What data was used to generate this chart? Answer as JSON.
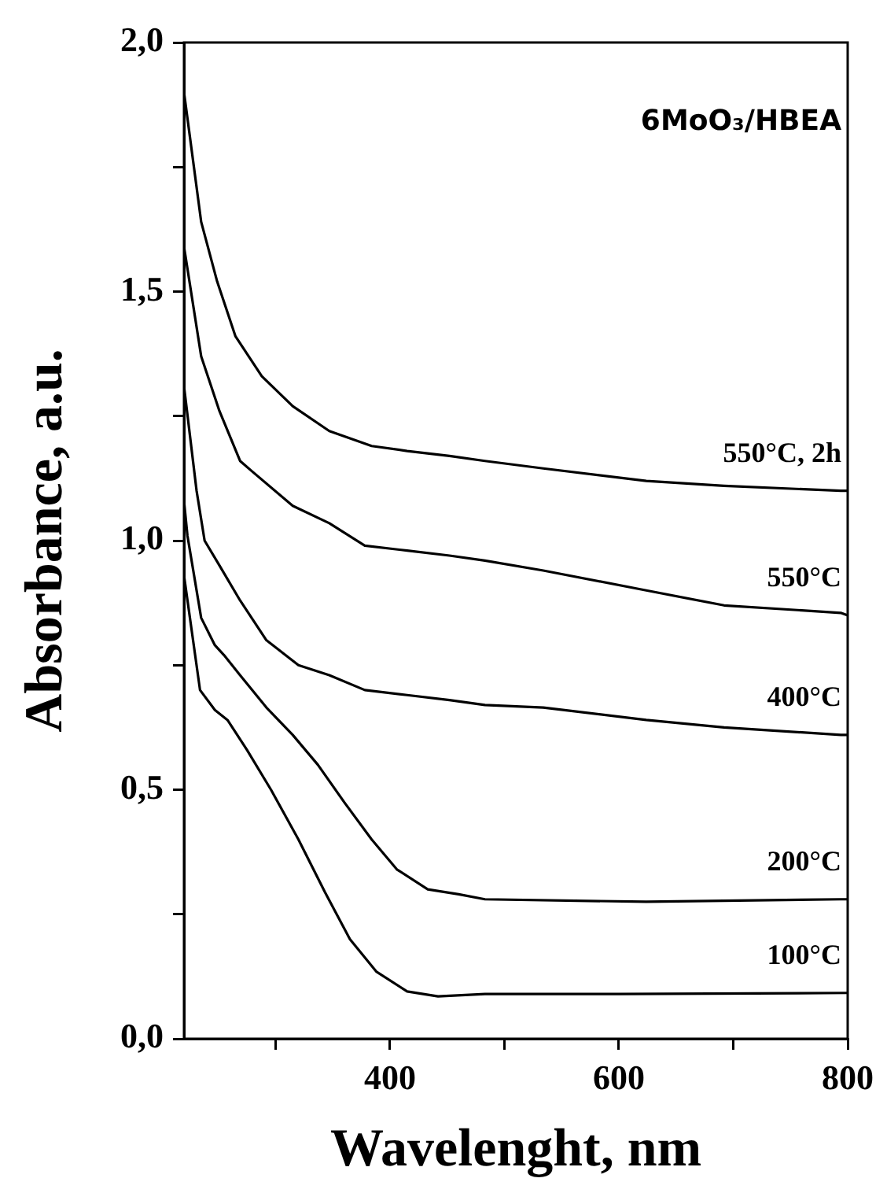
{
  "chart_data": {
    "type": "line",
    "xlabel": "Wavelenght, nm",
    "ylabel": "Absorbance, a.u.",
    "annotations": [
      "6MoO₃/HBEA"
    ],
    "xlim": [
      220,
      800
    ],
    "xticks": [
      {
        "value": 300,
        "label": null
      },
      400,
      {
        "value": 500,
        "label": null
      },
      600,
      {
        "value": 700,
        "label": null
      },
      800
    ],
    "ylim": [
      0,
      2
    ],
    "yticks": [
      {
        "value": 0,
        "label": "0,0"
      },
      {
        "value": 0.25,
        "label": null
      },
      {
        "value": 0.5,
        "label": "0,5"
      },
      {
        "value": 0.75,
        "label": null
      },
      {
        "value": 1,
        "label": "1,0"
      },
      {
        "value": 1.25,
        "label": null
      },
      {
        "value": 1.5,
        "label": "1,5"
      },
      {
        "value": 1.75,
        "label": null
      },
      {
        "value": 2,
        "label": "2,0"
      }
    ],
    "marker": "none",
    "line_style": "solid",
    "series": [
      {
        "name": "550°C, 2h",
        "color": "#000000",
        "x": [
          220,
          235,
          249,
          265,
          288,
          315,
          347,
          384,
          415,
          452,
          483,
          534,
          624,
          692,
          794,
          800
        ],
        "values": [
          1.9,
          1.64,
          1.52,
          1.41,
          1.33,
          1.27,
          1.22,
          1.19,
          1.18,
          1.17,
          1.16,
          1.145,
          1.12,
          1.11,
          1.1,
          1.1
        ]
      },
      {
        "name": "550°C",
        "color": "#000000",
        "x": [
          220,
          235,
          251,
          269,
          279,
          315,
          347,
          378,
          415,
          452,
          483,
          534,
          624,
          692,
          794,
          800
        ],
        "values": [
          1.59,
          1.37,
          1.26,
          1.16,
          1.14,
          1.07,
          1.035,
          0.99,
          0.98,
          0.97,
          0.96,
          0.94,
          0.9,
          0.87,
          0.855,
          0.85
        ]
      },
      {
        "name": "400°C",
        "color": "#000000",
        "x": [
          220,
          231,
          238,
          251,
          269,
          292,
          320,
          347,
          378,
          415,
          452,
          483,
          534,
          624,
          692,
          794,
          800
        ],
        "values": [
          1.31,
          1.1,
          1.0,
          0.95,
          0.88,
          0.8,
          0.75,
          0.73,
          0.7,
          0.69,
          0.68,
          0.67,
          0.665,
          0.64,
          0.625,
          0.61,
          0.61
        ]
      },
      {
        "name": "200°C",
        "color": "#000000",
        "x": [
          220,
          223,
          235,
          247,
          255,
          269,
          292,
          315,
          337,
          360,
          384,
          406,
          433,
          460,
          483,
          624,
          794,
          800
        ],
        "values": [
          1.08,
          1.01,
          0.845,
          0.79,
          0.77,
          0.73,
          0.665,
          0.61,
          0.55,
          0.475,
          0.4,
          0.34,
          0.3,
          0.29,
          0.28,
          0.275,
          0.28,
          0.28
        ]
      },
      {
        "name": "100°C",
        "color": "#000000",
        "x": [
          220,
          234,
          247,
          258,
          275,
          296,
          320,
          343,
          365,
          388,
          415,
          442,
          483,
          600,
          800
        ],
        "values": [
          0.93,
          0.7,
          0.66,
          0.64,
          0.58,
          0.5,
          0.4,
          0.295,
          0.2,
          0.135,
          0.095,
          0.085,
          0.09,
          0.09,
          0.092
        ]
      }
    ]
  }
}
